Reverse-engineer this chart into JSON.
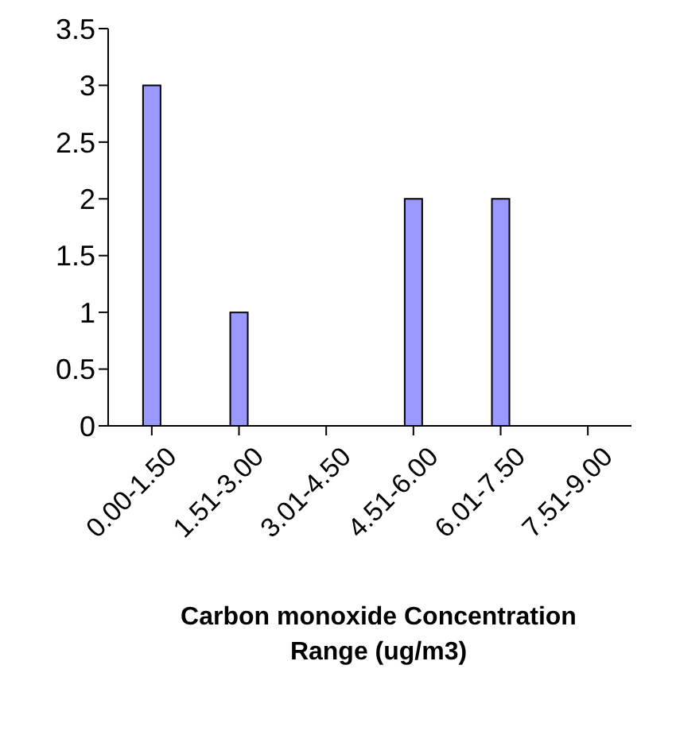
{
  "chart_data": {
    "type": "bar",
    "categories": [
      "0.00-1.50",
      "1.51-3.00",
      "3.01-4.50",
      "4.51-6.00",
      "6.01-7.50",
      "7.51-9.00"
    ],
    "values": [
      3,
      1,
      0,
      2,
      2,
      0
    ],
    "color": "#9999ff",
    "xlabel": "Carbon monoxide Concentration Range (ug/m3)",
    "ylim": [
      0,
      3.5
    ],
    "yticks": [
      0,
      0.5,
      1,
      1.5,
      2,
      2.5,
      3,
      3.5
    ],
    "grid": false,
    "legend": false
  }
}
